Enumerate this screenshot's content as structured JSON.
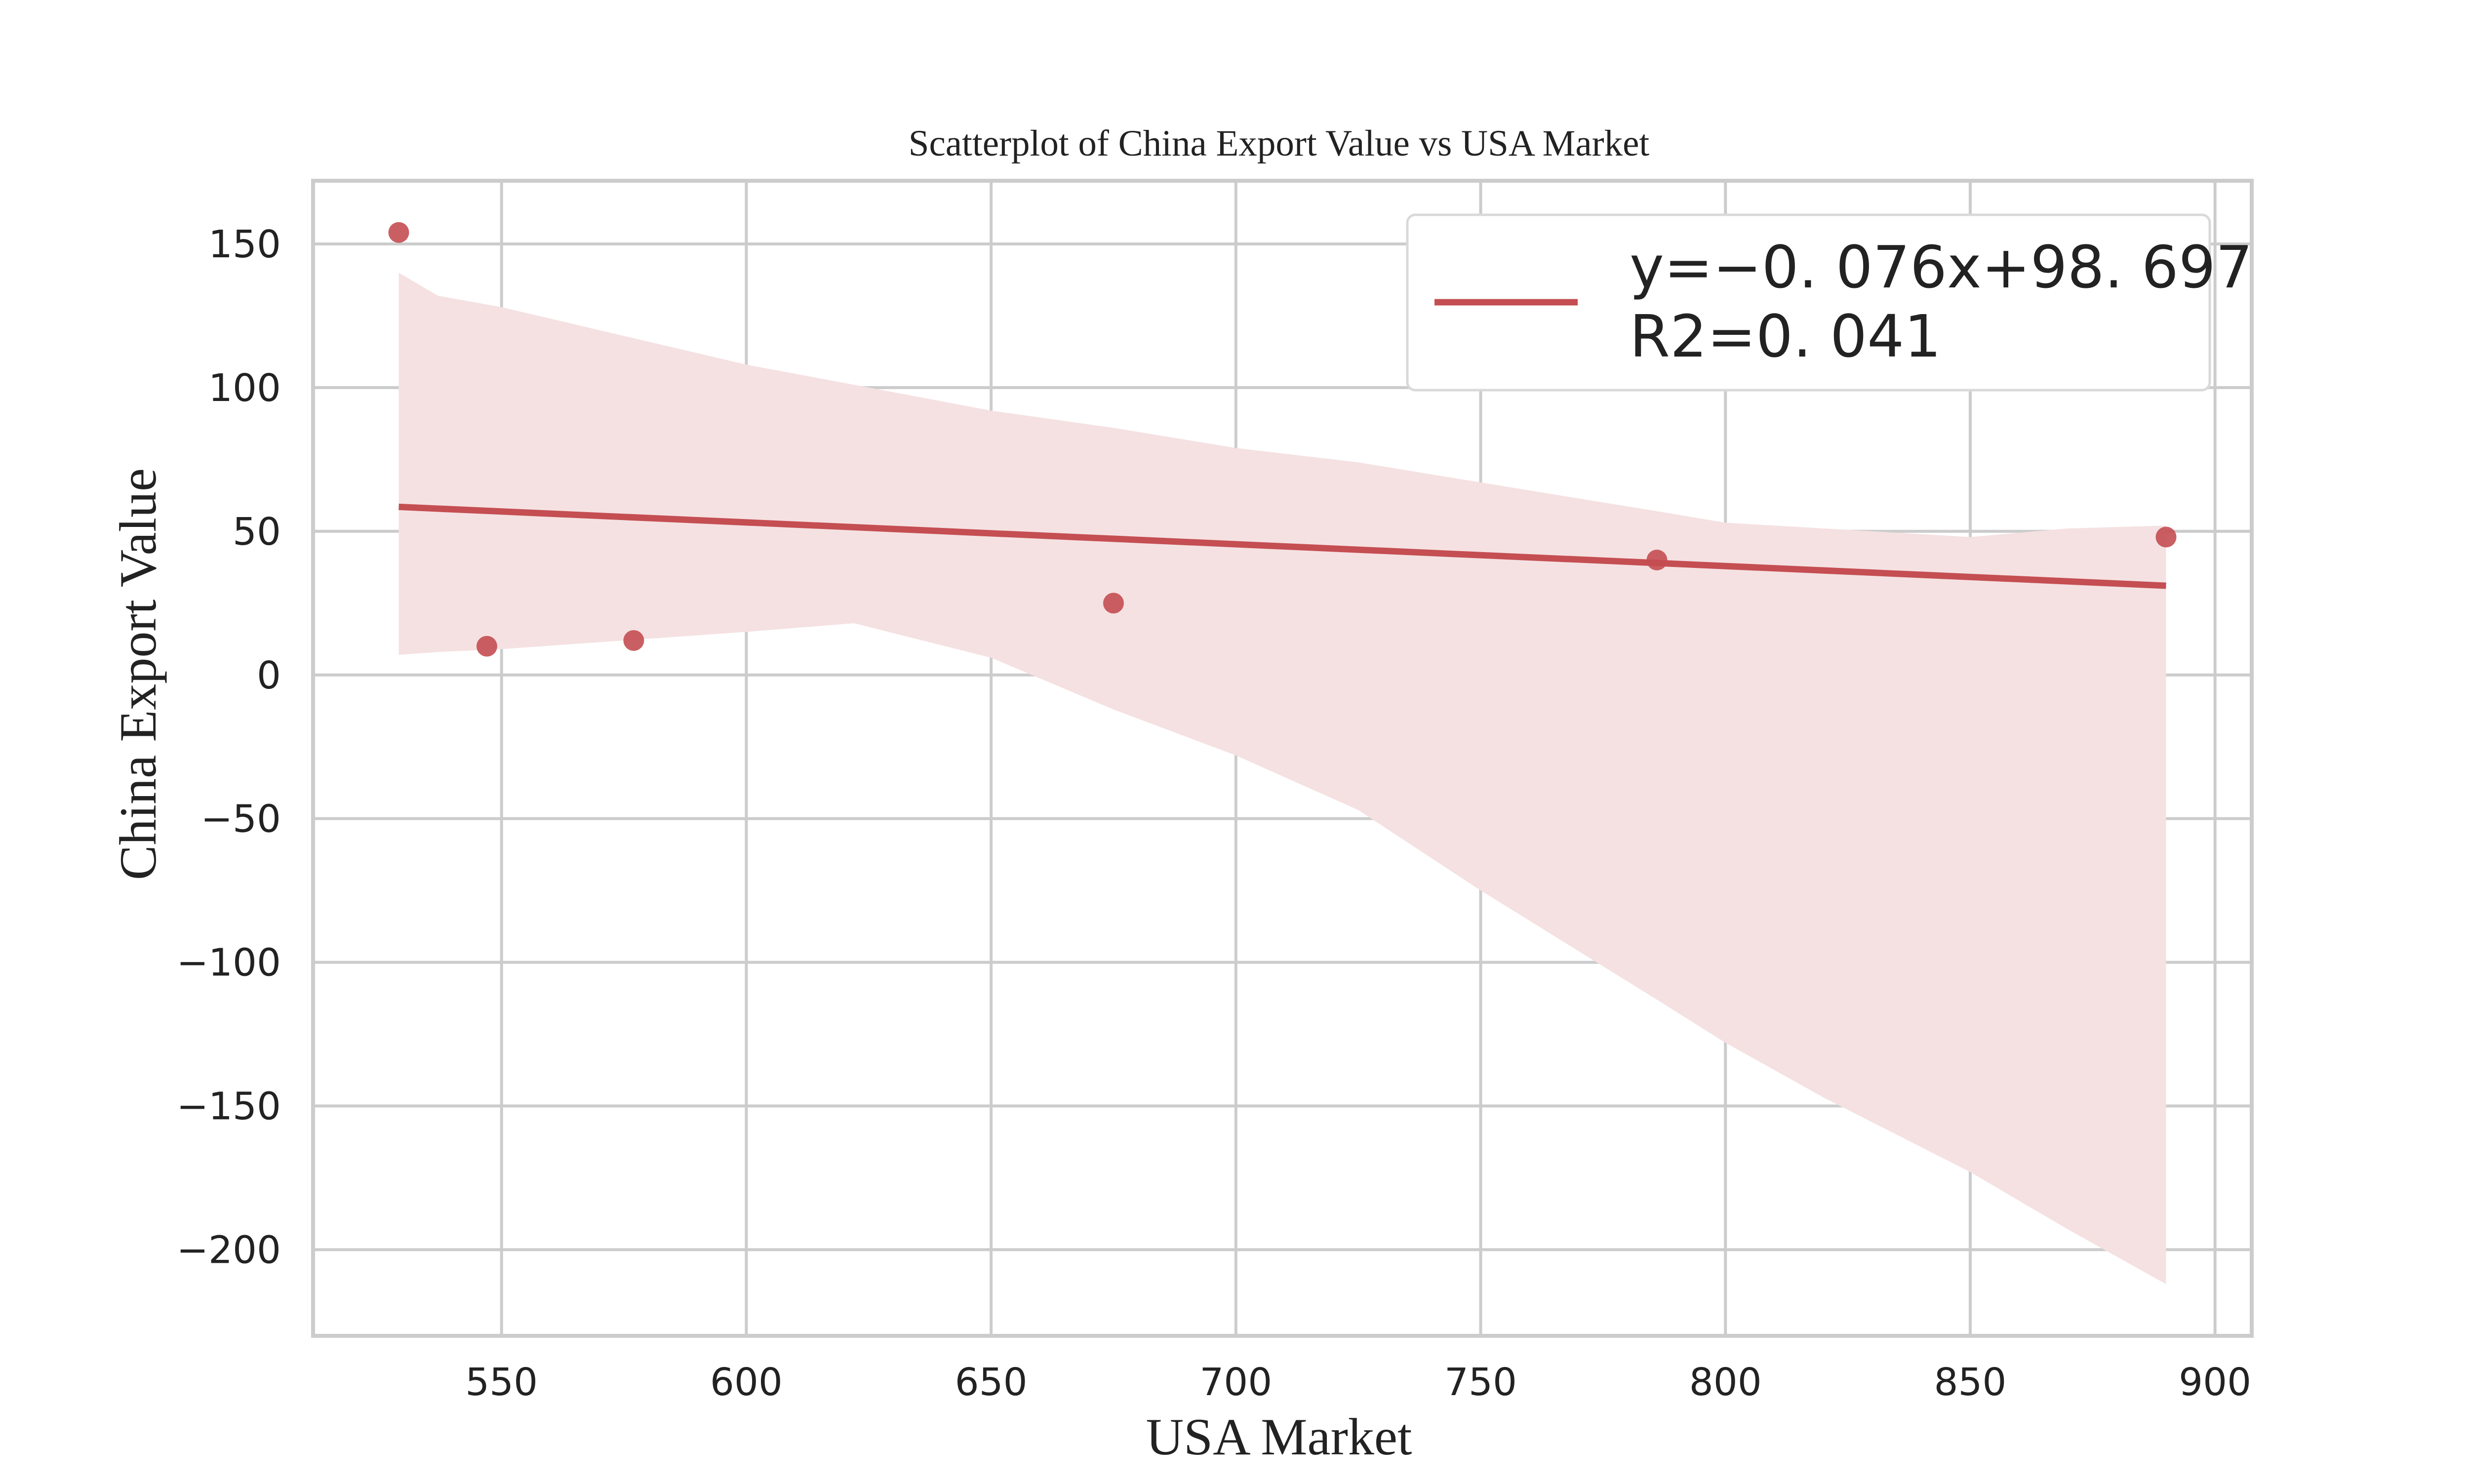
{
  "chart_data": {
    "type": "scatter",
    "title": "Scatterplot of China Export Value vs USA Market",
    "xlabel": "USA Market",
    "ylabel": "China Export Value",
    "xlim": [
      511.5,
      907.5
    ],
    "ylim": [
      -230,
      172
    ],
    "x_ticks": [
      550,
      600,
      650,
      700,
      750,
      800,
      850,
      900
    ],
    "y_ticks": [
      150,
      100,
      50,
      0,
      -50,
      -100,
      -150,
      -200
    ],
    "x_tick_labels": [
      "550",
      "600",
      "650",
      "700",
      "750",
      "800",
      "850",
      "900"
    ],
    "y_tick_labels": [
      "150",
      "100",
      "50",
      "0",
      "−50",
      "−100",
      "−150",
      "−200"
    ],
    "grid": true,
    "points": [
      {
        "x": 529,
        "y": 154
      },
      {
        "x": 547,
        "y": 10
      },
      {
        "x": 577,
        "y": 12
      },
      {
        "x": 675,
        "y": 25
      },
      {
        "x": 786,
        "y": 40
      },
      {
        "x": 890,
        "y": 48
      }
    ],
    "regression": {
      "slope": -0.076,
      "intercept": 98.697,
      "x_range": [
        529,
        890
      ],
      "confidence_band": {
        "x": [
          529,
          537,
          550,
          600,
          622,
          650,
          675,
          700,
          725,
          750,
          786,
          800,
          820,
          850,
          870,
          890
        ],
        "upper": [
          140,
          132,
          128,
          108,
          101,
          92,
          86,
          79,
          74,
          67,
          57,
          53,
          51,
          48,
          51,
          52
        ],
        "lower": [
          7,
          8,
          9,
          15,
          18,
          6,
          -12,
          -28,
          -47,
          -75,
          -113,
          -128,
          -147,
          -173,
          -193,
          -212
        ]
      }
    },
    "legend": {
      "position": "top-right",
      "label_line1": "y=−0. 076x+98. 697",
      "label_line2": "R2=0. 041"
    },
    "colors": {
      "series": "#c44e52",
      "band": "#f5e1e2",
      "grid": "#cccccc",
      "axes": "#cccccc"
    }
  }
}
